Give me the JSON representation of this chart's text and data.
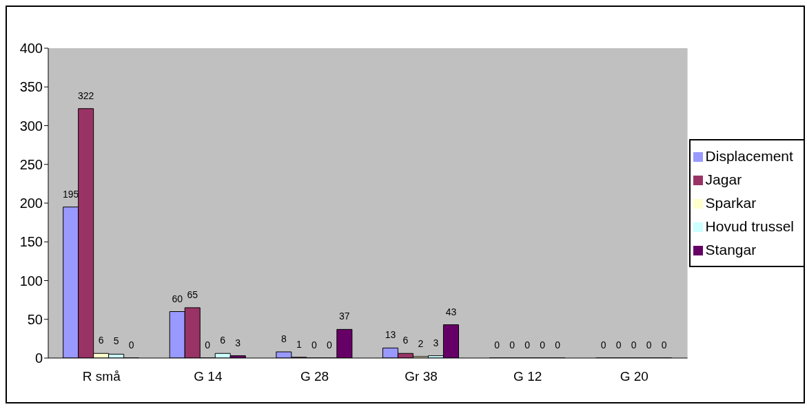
{
  "chart_data": {
    "type": "bar",
    "categories": [
      "R små",
      "G 14",
      "G 28",
      "Gr 38",
      "G 12",
      "G 20"
    ],
    "series": [
      {
        "name": "Displacement",
        "color": "#9999ff",
        "values": [
          195,
          60,
          8,
          13,
          0,
          0
        ]
      },
      {
        "name": "Jagar",
        "color": "#993366",
        "values": [
          322,
          65,
          1,
          6,
          0,
          0
        ]
      },
      {
        "name": "Sparkar",
        "color": "#ffffcc",
        "values": [
          6,
          0,
          0,
          2,
          0,
          0
        ]
      },
      {
        "name": "Hovud trussel",
        "color": "#ccffff",
        "values": [
          5,
          6,
          0,
          3,
          0,
          0
        ]
      },
      {
        "name": "Stangar",
        "color": "#660066",
        "values": [
          0,
          3,
          37,
          43,
          0,
          0
        ]
      }
    ],
    "ylim": [
      0,
      400
    ],
    "yticks": [
      0,
      50,
      100,
      150,
      200,
      250,
      300,
      350,
      400
    ],
    "grid": false,
    "legend": "right",
    "data_labels": true
  }
}
